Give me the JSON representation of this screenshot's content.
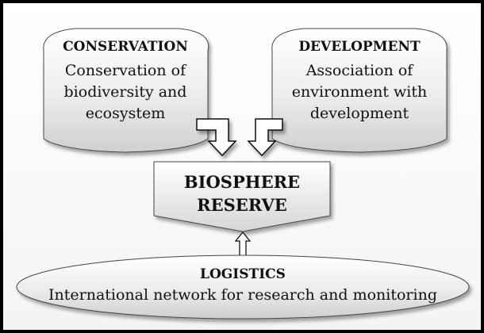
{
  "nodes": {
    "conservation": {
      "title": "CONSERVATION",
      "lines": [
        "Conservation of",
        "biodiversity and",
        "ecosystem"
      ]
    },
    "development": {
      "title": "DEVELOPMENT",
      "lines": [
        "Association of",
        "environment with",
        "development"
      ]
    },
    "biosphere": {
      "lines": [
        "BIOSPHERE",
        "RESERVE"
      ]
    },
    "logistics": {
      "title": "LOGISTICS",
      "text": "International network for research and monitoring"
    }
  }
}
